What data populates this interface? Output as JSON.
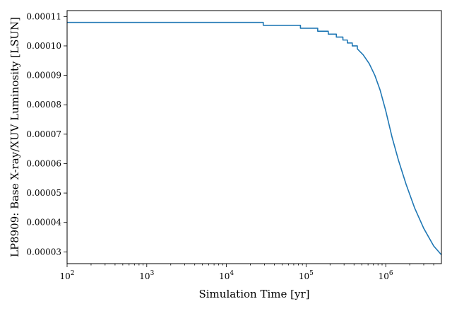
{
  "chart_data": {
    "type": "line",
    "xlabel": "Simulation Time [yr]",
    "ylabel": "LP8909: Base X-ray/XUV Luminosity [LSUN]",
    "xscale": "log",
    "xlim": [
      100,
      5000000
    ],
    "ylim": [
      2.6e-05,
      0.000112
    ],
    "grid": false,
    "legend": "none",
    "x_ticks": [
      100,
      1000,
      10000,
      100000,
      1000000
    ],
    "x_tick_labels": [
      {
        "base": "10",
        "exp": "2"
      },
      {
        "base": "10",
        "exp": "3"
      },
      {
        "base": "10",
        "exp": "4"
      },
      {
        "base": "10",
        "exp": "5"
      },
      {
        "base": "10",
        "exp": "6"
      }
    ],
    "y_ticks": [
      3e-05,
      4e-05,
      5e-05,
      6e-05,
      7e-05,
      8e-05,
      9e-05,
      0.0001,
      0.00011
    ],
    "y_tick_labels": [
      "0.00003",
      "0.00004",
      "0.00005",
      "0.00006",
      "0.00007",
      "0.00008",
      "0.00009",
      "0.00010",
      "0.00011"
    ],
    "series": [
      {
        "color": "#1f77b4",
        "step": "post",
        "x": [
          100,
          29000,
          85000,
          140000,
          190000,
          240000,
          290000,
          330000,
          380000,
          440000,
          520000,
          620000,
          730000,
          850000,
          1000000,
          1200000,
          1450000,
          1800000,
          2300000,
          3000000,
          4000000,
          5000000
        ],
        "y": [
          0.000108,
          0.000107,
          0.000106,
          0.000105,
          0.000104,
          0.000103,
          0.000102,
          0.000101,
          0.0001,
          9.9e-05,
          9.7e-05,
          9.4e-05,
          9e-05,
          8.5e-05,
          7.8e-05,
          6.9e-05,
          6.1e-05,
          5.3e-05,
          4.5e-05,
          3.8e-05,
          3.2e-05,
          2.9e-05
        ]
      }
    ]
  }
}
